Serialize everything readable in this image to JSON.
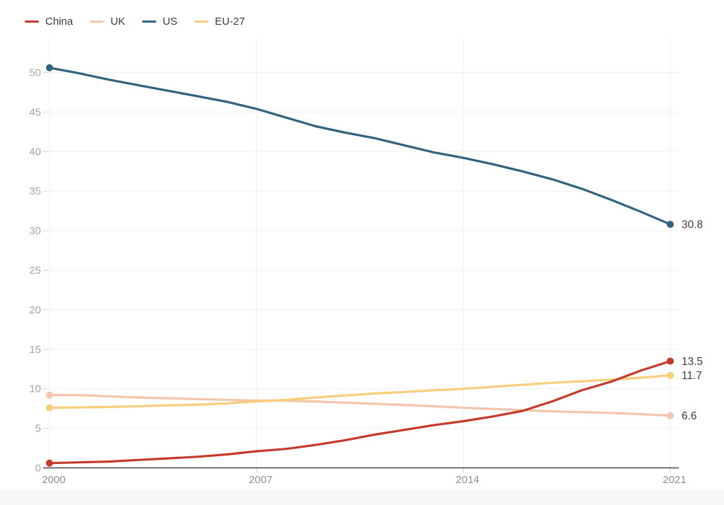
{
  "page": {
    "background_color": "#ffffff",
    "footer_strip_color": "#f7f7f6"
  },
  "legend": {
    "items": [
      {
        "label": "China",
        "color": "#c43a2b"
      },
      {
        "label": "UK",
        "color": "#f3c5ab"
      },
      {
        "label": "US",
        "color": "#31637f"
      },
      {
        "label": "EU-27",
        "color": "#f8cd7b"
      }
    ]
  },
  "chart_data": {
    "type": "line",
    "title": "",
    "xlabel": "",
    "ylabel": "",
    "x": [
      2000,
      2001,
      2002,
      2003,
      2004,
      2005,
      2006,
      2007,
      2008,
      2009,
      2010,
      2011,
      2012,
      2013,
      2014,
      2015,
      2016,
      2017,
      2018,
      2019,
      2020,
      2021
    ],
    "x_ticks": [
      2000,
      2007,
      2014,
      2021
    ],
    "x_tick_labels": [
      "2000",
      "2007",
      "2014",
      "2021"
    ],
    "y_ticks": [
      0,
      5,
      10,
      15,
      20,
      25,
      30,
      35,
      40,
      45,
      50
    ],
    "y_tick_labels": [
      "0",
      "5",
      "10",
      "15",
      "20",
      "25",
      "30",
      "35",
      "40",
      "45",
      "50"
    ],
    "xlim": [
      2000,
      2021
    ],
    "ylim": [
      0,
      50
    ],
    "grid": true,
    "legend_position": "top-left",
    "series": [
      {
        "name": "UK",
        "color": "#f3c5ab",
        "end_label": "6.6",
        "values": [
          9.2,
          9.2,
          9.05,
          8.9,
          8.8,
          8.7,
          8.6,
          8.5,
          8.5,
          8.4,
          8.25,
          8.1,
          7.95,
          7.8,
          7.6,
          7.45,
          7.3,
          7.15,
          7.05,
          6.95,
          6.8,
          6.6
        ]
      },
      {
        "name": "EU-27",
        "color": "#f8cd7b",
        "end_label": "11.7",
        "values": [
          7.6,
          7.65,
          7.7,
          7.8,
          7.9,
          8.0,
          8.15,
          8.4,
          8.6,
          8.9,
          9.15,
          9.4,
          9.6,
          9.8,
          10.0,
          10.25,
          10.5,
          10.75,
          10.95,
          11.15,
          11.4,
          11.7
        ]
      },
      {
        "name": "US",
        "color": "#31637f",
        "end_label": "30.8",
        "values": [
          50.6,
          49.9,
          49.1,
          48.4,
          47.7,
          47.0,
          46.3,
          45.4,
          44.3,
          43.2,
          42.4,
          41.7,
          40.8,
          39.9,
          39.2,
          38.4,
          37.5,
          36.5,
          35.3,
          33.9,
          32.4,
          30.8
        ]
      },
      {
        "name": "China",
        "color": "#c43a2b",
        "end_label": "13.5",
        "values": [
          0.6,
          0.7,
          0.8,
          1.0,
          1.2,
          1.4,
          1.7,
          2.1,
          2.4,
          2.9,
          3.5,
          4.2,
          4.8,
          5.4,
          5.9,
          6.5,
          7.2,
          8.4,
          9.8,
          10.9,
          12.3,
          13.5
        ]
      }
    ],
    "style": {
      "grid_color": "#efefef",
      "tick_color": "#d2d2d2",
      "axis_color": "#494949",
      "y_label_color": "#a6a6a6",
      "x_label_color": "#8f8f8f",
      "end_label_color": "#3e3e3e"
    }
  }
}
